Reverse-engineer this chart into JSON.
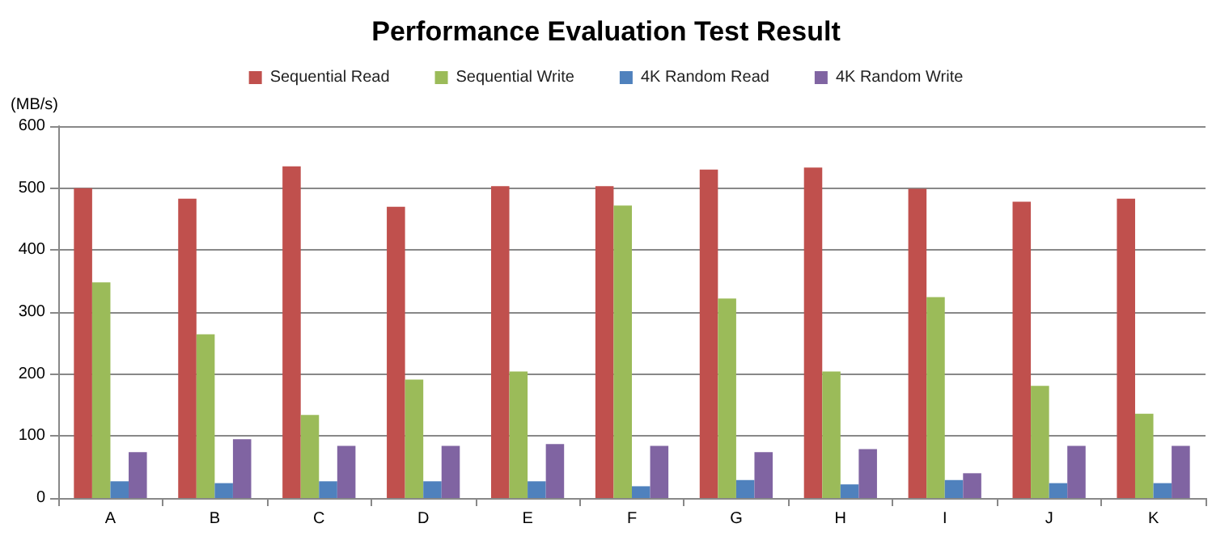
{
  "chart_data": {
    "type": "bar",
    "title": "Performance Evaluation Test Result",
    "ylabel": "(MB/s)",
    "categories": [
      "A",
      "B",
      "C",
      "D",
      "E",
      "F",
      "G",
      "H",
      "I",
      "J",
      "K"
    ],
    "series": [
      {
        "name": "Sequential Read",
        "color": "#c0504d",
        "values": [
          500,
          483,
          535,
          470,
          503,
          503,
          530,
          533,
          499,
          478,
          483
        ]
      },
      {
        "name": "Sequential Write",
        "color": "#9bbb59",
        "values": [
          348,
          264,
          134,
          191,
          204,
          472,
          322,
          204,
          324,
          181,
          136
        ]
      },
      {
        "name": "4K Random Read",
        "color": "#4f81bd",
        "values": [
          27,
          24,
          27,
          27,
          27,
          19,
          29,
          22,
          29,
          24,
          24
        ]
      },
      {
        "name": "4K Random Write",
        "color": "#8064a2",
        "values": [
          74,
          95,
          84,
          84,
          87,
          84,
          74,
          79,
          40,
          84,
          84
        ]
      }
    ],
    "ylim": [
      0,
      600
    ],
    "yticks": [
      0,
      100,
      200,
      300,
      400,
      500,
      600
    ],
    "grid": "y",
    "legend": "top"
  }
}
